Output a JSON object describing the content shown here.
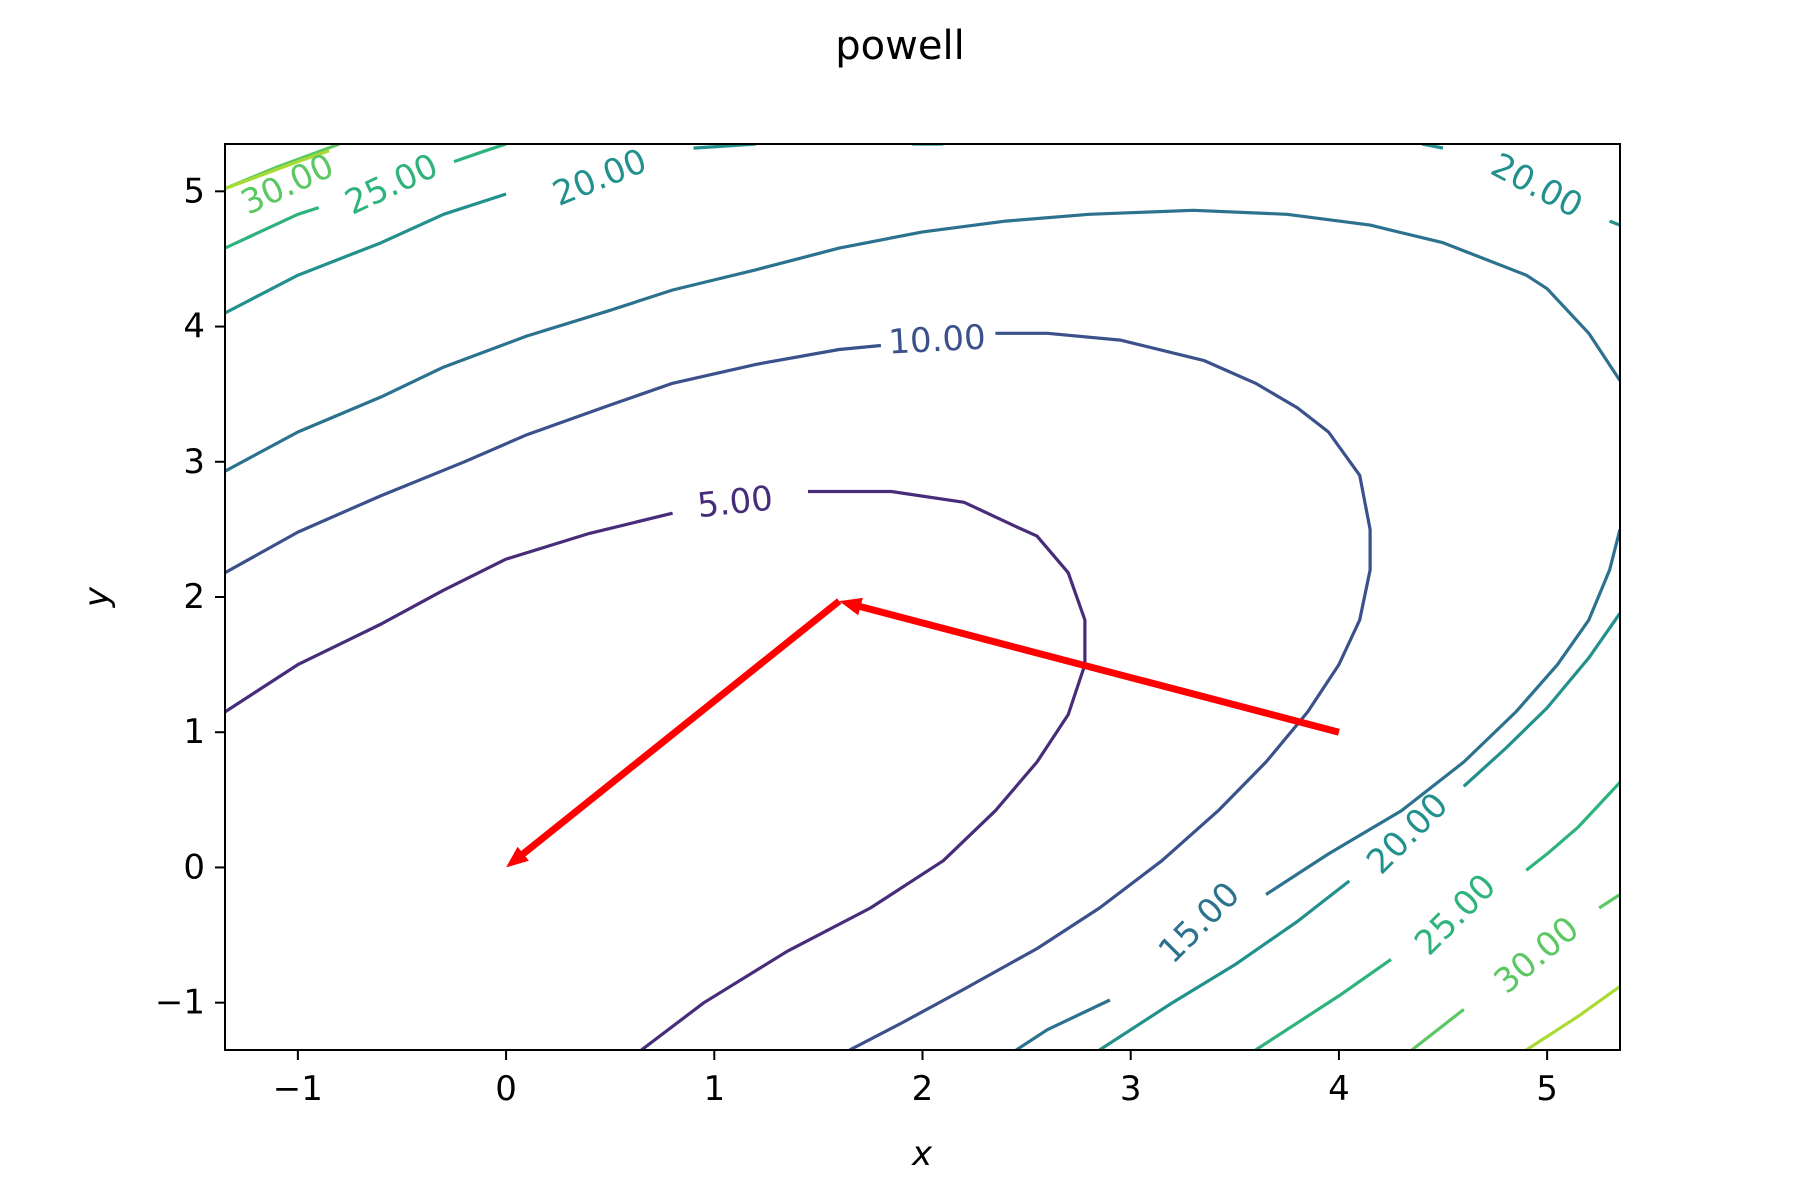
{
  "chart_data": {
    "type": "contour",
    "title": "powell",
    "xlabel": "x",
    "ylabel": "y",
    "xlim": [
      -1.35,
      5.35
    ],
    "ylim": [
      -1.35,
      5.35
    ],
    "xticks": [
      -1,
      0,
      1,
      2,
      3,
      4,
      5
    ],
    "xtick_labels": [
      "−1",
      "0",
      "1",
      "2",
      "3",
      "4",
      "5"
    ],
    "yticks": [
      -1,
      0,
      1,
      2,
      3,
      4,
      5
    ],
    "ytick_labels": [
      "−1",
      "0",
      "1",
      "2",
      "3",
      "4",
      "5"
    ],
    "colormap": "viridis",
    "contours": [
      {
        "level": 5,
        "color": "#472c7a",
        "segments": [
          [
            [
              -1.35,
              1.15
            ],
            [
              -1.0,
              1.5
            ],
            [
              -0.6,
              1.8
            ],
            [
              -0.3,
              2.05
            ],
            [
              0.0,
              2.28
            ],
            [
              0.4,
              2.47
            ],
            [
              0.8,
              2.62
            ]
          ],
          [
            [
              1.45,
              2.78
            ],
            [
              1.85,
              2.78
            ],
            [
              2.2,
              2.7
            ],
            [
              2.45,
              2.52
            ],
            [
              2.55,
              2.45
            ],
            [
              2.7,
              2.18
            ],
            [
              2.78,
              1.83
            ],
            [
              2.78,
              1.5
            ],
            [
              2.7,
              1.13
            ],
            [
              2.55,
              0.78
            ],
            [
              2.35,
              0.42
            ],
            [
              2.1,
              0.05
            ],
            [
              1.75,
              -0.3
            ],
            [
              1.35,
              -0.62
            ],
            [
              0.95,
              -1.0
            ],
            [
              0.65,
              -1.35
            ]
          ]
        ]
      },
      {
        "level": 10,
        "color": "#3b518b",
        "segments": [
          [
            [
              -1.35,
              2.18
            ],
            [
              -1.0,
              2.48
            ],
            [
              -0.6,
              2.75
            ],
            [
              -0.2,
              3.0
            ],
            [
              0.1,
              3.2
            ],
            [
              0.5,
              3.42
            ],
            [
              0.8,
              3.58
            ],
            [
              1.2,
              3.72
            ],
            [
              1.6,
              3.83
            ],
            [
              1.8,
              3.86
            ]
          ],
          [
            [
              2.35,
              3.95
            ],
            [
              2.6,
              3.95
            ],
            [
              2.95,
              3.9
            ],
            [
              3.35,
              3.75
            ],
            [
              3.6,
              3.58
            ],
            [
              3.8,
              3.4
            ],
            [
              3.95,
              3.22
            ],
            [
              4.1,
              2.9
            ],
            [
              4.15,
              2.5
            ],
            [
              4.15,
              2.2
            ],
            [
              4.1,
              1.83
            ],
            [
              4.0,
              1.5
            ],
            [
              3.85,
              1.15
            ],
            [
              3.65,
              0.78
            ],
            [
              3.42,
              0.42
            ],
            [
              3.15,
              0.05
            ],
            [
              2.85,
              -0.3
            ],
            [
              2.55,
              -0.6
            ],
            [
              2.2,
              -0.9
            ],
            [
              1.9,
              -1.15
            ],
            [
              1.65,
              -1.35
            ]
          ]
        ]
      },
      {
        "level": 15,
        "color": "#2c728e",
        "segments": [
          [
            [
              -1.35,
              2.93
            ],
            [
              -1.0,
              3.22
            ],
            [
              -0.6,
              3.48
            ],
            [
              -0.3,
              3.7
            ],
            [
              0.1,
              3.93
            ],
            [
              0.5,
              4.12
            ],
            [
              0.8,
              4.27
            ],
            [
              1.2,
              4.42
            ],
            [
              1.6,
              4.58
            ],
            [
              2.0,
              4.7
            ],
            [
              2.4,
              4.78
            ],
            [
              2.8,
              4.83
            ],
            [
              3.3,
              4.86
            ],
            [
              3.75,
              4.83
            ],
            [
              4.15,
              4.75
            ],
            [
              4.5,
              4.62
            ],
            [
              4.9,
              4.38
            ],
            [
              5.0,
              4.28
            ],
            [
              5.2,
              3.95
            ],
            [
              5.35,
              3.6
            ]
          ],
          [
            [
              5.35,
              2.5
            ],
            [
              5.3,
              2.2
            ],
            [
              5.2,
              1.83
            ],
            [
              5.05,
              1.5
            ],
            [
              4.85,
              1.15
            ],
            [
              4.6,
              0.78
            ],
            [
              4.3,
              0.42
            ],
            [
              3.95,
              0.1
            ],
            [
              3.65,
              -0.2
            ]
          ],
          [
            [
              2.9,
              -0.98
            ],
            [
              2.6,
              -1.2
            ],
            [
              2.45,
              -1.35
            ]
          ]
        ]
      },
      {
        "level": 20,
        "color": "#22908c",
        "segments": [
          [
            [
              -1.35,
              4.1
            ],
            [
              -1.0,
              4.38
            ],
            [
              -0.6,
              4.62
            ],
            [
              -0.3,
              4.83
            ],
            [
              0.0,
              4.98
            ]
          ],
          [
            [
              0.9,
              5.32
            ],
            [
              1.2,
              5.35
            ]
          ],
          [
            [
              1.95,
              5.35
            ],
            [
              2.1,
              5.35
            ]
          ],
          [
            [
              4.4,
              5.35
            ],
            [
              4.5,
              5.32
            ]
          ],
          [
            [
              5.3,
              4.78
            ],
            [
              5.35,
              4.75
            ]
          ],
          [
            [
              5.35,
              1.88
            ],
            [
              5.2,
              1.55
            ],
            [
              5.0,
              1.18
            ],
            [
              4.8,
              0.88
            ],
            [
              4.6,
              0.6
            ]
          ],
          [
            [
              4.05,
              -0.1
            ],
            [
              3.8,
              -0.4
            ],
            [
              3.5,
              -0.72
            ],
            [
              3.2,
              -1.0
            ],
            [
              2.85,
              -1.35
            ]
          ]
        ]
      },
      {
        "level": 25,
        "color": "#2db37b",
        "segments": [
          [
            [
              -1.35,
              4.58
            ],
            [
              -1.0,
              4.83
            ],
            [
              -0.9,
              4.88
            ]
          ],
          [
            [
              -0.25,
              5.22
            ],
            [
              -0.1,
              5.3
            ],
            [
              0.0,
              5.35
            ]
          ],
          [
            [
              5.35,
              0.63
            ],
            [
              5.15,
              0.3
            ],
            [
              5.0,
              0.1
            ],
            [
              4.9,
              -0.02
            ]
          ],
          [
            [
              4.25,
              -0.68
            ],
            [
              4.0,
              -0.95
            ],
            [
              3.6,
              -1.35
            ]
          ]
        ]
      },
      {
        "level": 30,
        "color": "#5cc863",
        "segments": [
          [
            [
              -1.35,
              5.02
            ],
            [
              -1.1,
              5.18
            ],
            [
              -0.8,
              5.35
            ]
          ],
          [
            [
              5.35,
              -0.2
            ],
            [
              5.25,
              -0.3
            ]
          ],
          [
            [
              4.6,
              -1.05
            ],
            [
              4.35,
              -1.35
            ]
          ]
        ]
      },
      {
        "level": 35,
        "color": "#a8db34",
        "segments": [
          [
            [
              -1.35,
              5.02
            ],
            [
              -1.0,
              5.22
            ],
            [
              -0.85,
              5.3
            ]
          ],
          [
            [
              5.35,
              -0.88
            ],
            [
              5.15,
              -1.1
            ],
            [
              4.9,
              -1.35
            ]
          ]
        ]
      }
    ],
    "contour_labels": [
      {
        "text": "5.00",
        "x": 1.1,
        "y": 2.7,
        "angle": -6,
        "level": 5
      },
      {
        "text": "10.00",
        "x": 2.07,
        "y": 3.9,
        "angle": -3,
        "level": 10
      },
      {
        "text": "15.00",
        "x": 3.33,
        "y": -0.41,
        "angle": -45,
        "level": 15
      },
      {
        "text": "20.00",
        "x": 0.45,
        "y": 5.1,
        "angle": -22,
        "level": 20
      },
      {
        "text": "20.00",
        "x": 4.95,
        "y": 5.04,
        "angle": 28,
        "level": 20
      },
      {
        "text": "20.00",
        "x": 4.33,
        "y": 0.25,
        "angle": -45,
        "level": 20
      },
      {
        "text": "25.00",
        "x": -0.55,
        "y": 5.05,
        "angle": -25,
        "level": 25
      },
      {
        "text": "25.00",
        "x": 4.56,
        "y": -0.35,
        "angle": -45,
        "level": 25
      },
      {
        "text": "30.00",
        "x": -1.05,
        "y": 5.05,
        "angle": -25,
        "level": 30
      },
      {
        "text": "30.00",
        "x": 4.95,
        "y": -0.65,
        "angle": -40,
        "level": 30
      }
    ],
    "path": {
      "color": "#ff0000",
      "points": [
        [
          4.0,
          1.0
        ],
        [
          1.6,
          1.97
        ],
        [
          0.0,
          0.0
        ]
      ]
    }
  }
}
